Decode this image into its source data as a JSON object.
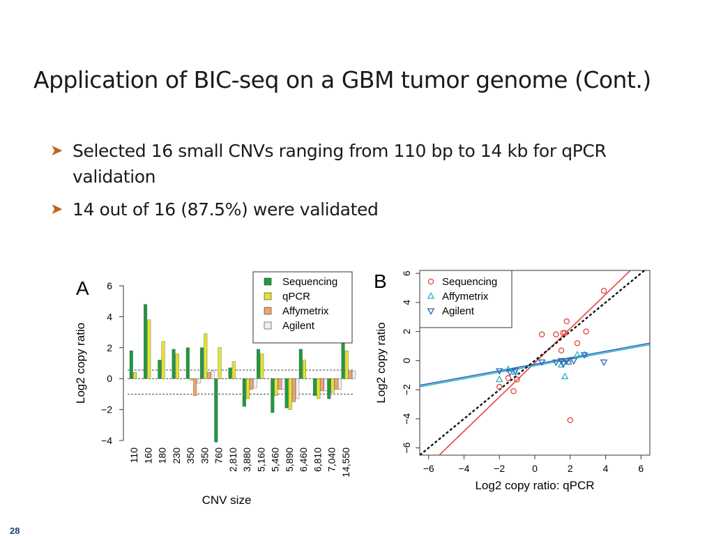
{
  "slide": {
    "title": "Application of BIC-seq on a GBM tumor genome (Cont.)",
    "bullets": [
      "Selected 16 small CNVs ranging from 110 bp to 14 kb for qPCR validation",
      "14 out of 16 (87.5%) were validated"
    ],
    "page_number": "28"
  },
  "colors": {
    "sequencing": "#1f9a3f",
    "qpcr": "#e4e32c",
    "affymetrix": "#f2a46a",
    "agilent": "#f0f0f0",
    "seq_points": "#e2453f",
    "affy_points": "#2bb0c9",
    "agilent_points": "#2a66b2",
    "bullet_arrow": "#c0641a"
  },
  "chart_data": [
    {
      "type": "bar",
      "panel_label": "A",
      "xlabel": "CNV size",
      "ylabel": "Log2 copy ratio",
      "ylim": [
        -4,
        6
      ],
      "yticks": [
        -4,
        -2,
        0,
        2,
        4,
        6
      ],
      "reference_lines": [
        0.55,
        -1.0
      ],
      "legend_position": "top-right",
      "categories": [
        "110",
        "160",
        "180",
        "230",
        "350",
        "350",
        "760",
        "2,810",
        "3,880",
        "5,160",
        "5,460",
        "5,890",
        "6,460",
        "6,810",
        "7,040",
        "14,550"
      ],
      "series": [
        {
          "name": "Sequencing",
          "values": [
            1.8,
            4.8,
            1.2,
            1.9,
            2.0,
            2.0,
            -4.1,
            0.7,
            -1.8,
            1.9,
            -2.2,
            -1.9,
            1.9,
            -1.1,
            -1.3,
            2.7
          ]
        },
        {
          "name": "qPCR",
          "values": [
            0.4,
            3.8,
            2.4,
            1.6,
            -0.1,
            2.9,
            2.0,
            1.1,
            -1.3,
            1.6,
            -1.1,
            -2.0,
            1.2,
            -1.3,
            -0.9,
            1.8
          ]
        },
        {
          "name": "Affymetrix",
          "values": [
            0.0,
            0.0,
            0.0,
            0.0,
            -1.1,
            0.4,
            0.0,
            0.0,
            -0.7,
            0.0,
            -0.7,
            -1.5,
            0.0,
            -0.8,
            -0.7,
            0.5
          ]
        },
        {
          "name": "Agilent",
          "values": [
            0.0,
            0.0,
            0.0,
            0.0,
            -0.3,
            0.5,
            0.0,
            0.0,
            -0.6,
            0.0,
            -0.7,
            -1.3,
            0.0,
            -0.8,
            -0.7,
            0.5
          ]
        }
      ]
    },
    {
      "type": "scatter",
      "panel_label": "B",
      "xlabel": "Log2 copy ratio: qPCR",
      "ylabel": "Log2 copy ratio",
      "xlim": [
        -6.5,
        6.5
      ],
      "ylim": [
        -6.5,
        6.2
      ],
      "xticks": [
        -6,
        -4,
        -2,
        0,
        2,
        4,
        6
      ],
      "yticks": [
        -6,
        -4,
        -2,
        0,
        2,
        4,
        6
      ],
      "legend_position": "top-left",
      "identity_line": true,
      "series": [
        {
          "name": "Sequencing",
          "marker": "circle",
          "points": [
            [
              -2.0,
              -1.8
            ],
            [
              -1.5,
              -1.2
            ],
            [
              -1.2,
              -2.1
            ],
            [
              -1.0,
              -1.3
            ],
            [
              0.4,
              1.8
            ],
            [
              1.2,
              1.8
            ],
            [
              1.5,
              0.7
            ],
            [
              1.6,
              1.9
            ],
            [
              1.7,
              1.9
            ],
            [
              1.8,
              2.7
            ],
            [
              2.0,
              -4.1
            ],
            [
              2.4,
              1.2
            ],
            [
              2.9,
              2.0
            ],
            [
              3.9,
              4.8
            ],
            [
              1.9,
              -0.1
            ]
          ],
          "fit_line": [
            [
              -5.4,
              -6.5
            ],
            [
              5.4,
              6.2
            ]
          ]
        },
        {
          "name": "Affymetrix",
          "marker": "triangle-up",
          "points": [
            [
              -2.0,
              -1.3
            ],
            [
              -1.5,
              -0.6
            ],
            [
              -1.1,
              -0.8
            ],
            [
              1.5,
              -0.3
            ],
            [
              1.7,
              -1.1
            ],
            [
              1.9,
              -0.1
            ],
            [
              2.4,
              0.4
            ],
            [
              2.8,
              0.4
            ]
          ],
          "fit_line": [
            [
              -6.5,
              -1.8
            ],
            [
              6.5,
              1.1
            ]
          ]
        },
        {
          "name": "Agilent",
          "marker": "triangle-down",
          "points": [
            [
              -2.0,
              -0.7
            ],
            [
              -1.4,
              -0.8
            ],
            [
              -1.1,
              -0.7
            ],
            [
              0.4,
              -0.1
            ],
            [
              1.2,
              -0.1
            ],
            [
              1.5,
              0.0
            ],
            [
              1.6,
              -0.2
            ],
            [
              1.8,
              0.0
            ],
            [
              2.2,
              0.0
            ],
            [
              2.8,
              0.4
            ],
            [
              3.9,
              -0.1
            ]
          ],
          "fit_line": [
            [
              -6.5,
              -1.7
            ],
            [
              6.5,
              1.2
            ]
          ]
        }
      ]
    }
  ]
}
